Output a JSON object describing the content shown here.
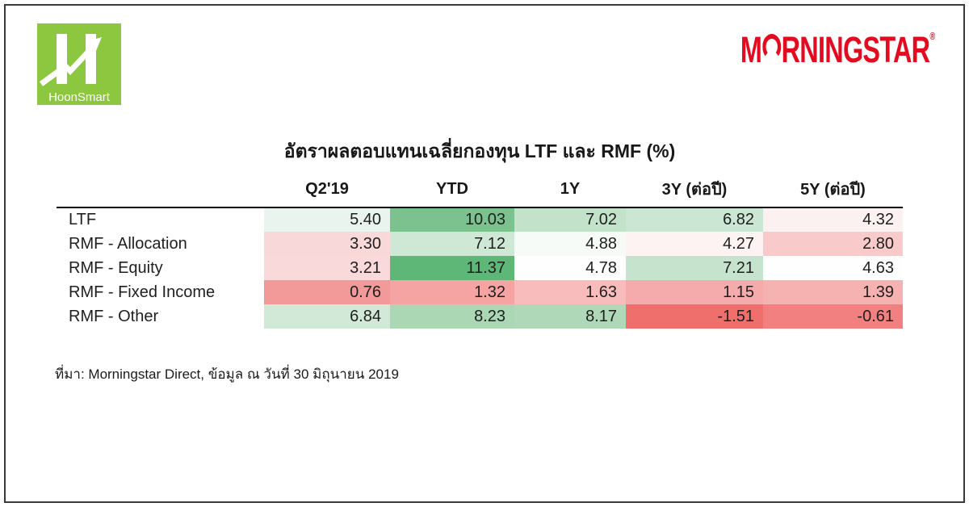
{
  "page": {
    "background": "#ffffff",
    "frame_border_color": "#3a3a3a"
  },
  "header": {
    "hoonsmart": {
      "label": "HoonSmart",
      "brand_green": "#8dc63f",
      "icon": "hoonsmart-h-arrow-icon"
    },
    "morningstar": {
      "label_prefix": "M",
      "label_suffix": "RNINGSTAR",
      "registered_mark": "®",
      "brand_red": "#e30b20",
      "icon": "morningstar-open-o-icon"
    }
  },
  "table": {
    "title": "อัตราผลตอบแทนเฉลี่ยกองทุน LTF และ RMF (%)"
  },
  "footer": {
    "source": "ที่มา: Morningstar Direct, ข้อมูล ณ วันที่ 30 มิถุนายน 2019"
  },
  "chart_data": {
    "type": "table",
    "title": "อัตราผลตอบแทนเฉลี่ยกองทุน LTF และ RMF (%)",
    "columns": [
      "Q2'19",
      "YTD",
      "1Y",
      "3Y (ต่อปี)",
      "5Y (ต่อปี)"
    ],
    "rows": [
      "LTF",
      "RMF - Allocation",
      "RMF - Equity",
      "RMF - Fixed Income",
      "RMF - Other"
    ],
    "values": [
      [
        5.4,
        10.03,
        7.02,
        6.82,
        4.32
      ],
      [
        3.3,
        7.12,
        4.88,
        4.27,
        2.8
      ],
      [
        3.21,
        11.37,
        4.78,
        7.21,
        4.63
      ],
      [
        0.76,
        1.32,
        1.63,
        1.15,
        1.39
      ],
      [
        6.84,
        8.23,
        8.17,
        -1.51,
        -0.61
      ]
    ],
    "value_format": "two_decimals",
    "cell_colors": [
      [
        "#e9f4ee",
        "#7cc28e",
        "#c2e2ca",
        "#cbe6d2",
        "#fcf1f1"
      ],
      [
        "#f9d8da",
        "#cfe8d5",
        "#f7fbf8",
        "#fdf3f3",
        "#f8caca"
      ],
      [
        "#f9d9da",
        "#5eb677",
        "#fdfefd",
        "#c5e3cd",
        "#fefefe"
      ],
      [
        "#f29a9a",
        "#f5a3a3",
        "#f8bcbc",
        "#f5abab",
        "#f6b1b1"
      ],
      [
        "#d3e9d8",
        "#abd7b4",
        "#aed8b7",
        "#ef6f6d",
        "#f28080"
      ]
    ],
    "heatmap": "green = high return, red = low/negative return, shaded per column",
    "grid": false,
    "source_note": "ที่มา: Morningstar Direct, ข้อมูล ณ วันที่ 30 มิถุนายน 2019"
  }
}
